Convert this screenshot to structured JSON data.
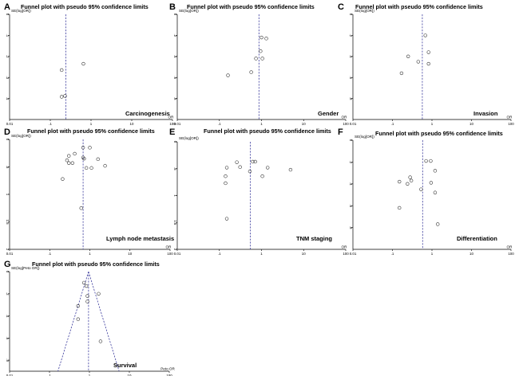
{
  "chart_data": [
    {
      "type": "scatter",
      "panel_letter": "A",
      "title": "Funnel plot with pseudo 95% confidence limits",
      "ylabel": "SE(log[OR])",
      "xlabel": "OR",
      "subtitle": "Carcinogenesis",
      "x_ticks": [
        "0.01",
        ".1",
        "1",
        "10",
        "100"
      ],
      "y_ticks": [
        "0",
        ".1",
        ".2",
        ".3",
        ".4"
      ],
      "x_log_range": [
        -2,
        2
      ],
      "ylim": [
        0,
        0.5
      ],
      "pooled": 0.24,
      "points": [
        {
          "x": 0.19,
          "y": 0.265
        },
        {
          "x": 0.19,
          "y": 0.392
        },
        {
          "x": 0.23,
          "y": 0.388
        },
        {
          "x": 0.65,
          "y": 0.235
        }
      ]
    },
    {
      "type": "scatter",
      "panel_letter": "B",
      "title": "Funnel plot with pseudo 95% confidence limits",
      "ylabel": "SE(log[OR])",
      "xlabel": "OR",
      "subtitle": "Gender",
      "x_ticks": [
        "0.01",
        ".1",
        "1",
        "10",
        "100"
      ],
      "y_ticks": [
        "0",
        ".2",
        ".4",
        ".6",
        ".8"
      ],
      "x_log_range": [
        -2,
        2
      ],
      "ylim": [
        0,
        1
      ],
      "pooled": 0.87,
      "points": [
        {
          "x": 0.16,
          "y": 0.58
        },
        {
          "x": 0.57,
          "y": 0.55
        },
        {
          "x": 0.74,
          "y": 0.42
        },
        {
          "x": 0.95,
          "y": 0.35
        },
        {
          "x": 1.0,
          "y": 0.22
        },
        {
          "x": 1.05,
          "y": 0.42
        },
        {
          "x": 1.3,
          "y": 0.23
        }
      ]
    },
    {
      "type": "scatter",
      "panel_letter": "C",
      "title": "Funnel plot with pseudo 95% confidence limits",
      "ylabel": "SE(log[OR])",
      "xlabel": "OR",
      "subtitle": "Invasion",
      "x_ticks": [
        "0.01",
        ".1",
        "1",
        "10",
        "100"
      ],
      "y_ticks": [
        "0",
        ".2",
        ".4",
        ".6",
        ".8"
      ],
      "x_log_range": [
        -2,
        2
      ],
      "ylim": [
        0,
        1
      ],
      "pooled": 0.57,
      "points": [
        {
          "x": 0.17,
          "y": 0.56
        },
        {
          "x": 0.25,
          "y": 0.4
        },
        {
          "x": 0.45,
          "y": 0.45
        },
        {
          "x": 0.68,
          "y": 0.2
        },
        {
          "x": 0.82,
          "y": 0.36
        },
        {
          "x": 0.82,
          "y": 0.47
        }
      ]
    },
    {
      "type": "scatter",
      "panel_letter": "D",
      "title": "Funnel plot with pseudo 95% confidence limits",
      "ylabel": "SE(log[OR])",
      "xlabel": "OR",
      "subtitle": "Lymph node metastasis",
      "x_ticks": [
        "0.01",
        ".1",
        "1",
        "10",
        "100"
      ],
      "y_ticks": [
        "0",
        ".5",
        "1",
        "1.5",
        "2"
      ],
      "x_log_range": [
        -2,
        2
      ],
      "ylim": [
        0,
        2
      ],
      "pooled": 0.68,
      "points": [
        {
          "x": 0.21,
          "y": 0.72
        },
        {
          "x": 0.27,
          "y": 0.38
        },
        {
          "x": 0.3,
          "y": 0.3
        },
        {
          "x": 0.3,
          "y": 0.43
        },
        {
          "x": 0.37,
          "y": 0.43
        },
        {
          "x": 0.42,
          "y": 0.26
        },
        {
          "x": 0.61,
          "y": 1.25
        },
        {
          "x": 0.68,
          "y": 0.15
        },
        {
          "x": 0.68,
          "y": 0.33
        },
        {
          "x": 0.72,
          "y": 0.35
        },
        {
          "x": 0.82,
          "y": 0.52
        },
        {
          "x": 1.0,
          "y": 0.15
        },
        {
          "x": 1.1,
          "y": 0.52
        },
        {
          "x": 1.6,
          "y": 0.36
        },
        {
          "x": 2.4,
          "y": 0.48
        }
      ]
    },
    {
      "type": "scatter",
      "panel_letter": "E",
      "title": "Funnel plot with pseudo 95% confidence limits",
      "ylabel": "SE(log[OR])",
      "xlabel": "OR",
      "subtitle": "TNM staging",
      "x_ticks": [
        "0.01",
        ".1",
        "1",
        "10",
        "100"
      ],
      "y_ticks": [
        "0",
        ".5",
        "1",
        "1.5",
        "2"
      ],
      "x_log_range": [
        -2,
        2
      ],
      "ylim": [
        0,
        2
      ],
      "pooled": 0.54,
      "points": [
        {
          "x": 0.14,
          "y": 0.64
        },
        {
          "x": 0.14,
          "y": 0.77
        },
        {
          "x": 0.15,
          "y": 0.48
        },
        {
          "x": 0.15,
          "y": 1.43
        },
        {
          "x": 0.26,
          "y": 0.38
        },
        {
          "x": 0.31,
          "y": 0.47
        },
        {
          "x": 0.53,
          "y": 0.55
        },
        {
          "x": 0.62,
          "y": 0.37
        },
        {
          "x": 0.71,
          "y": 0.37
        },
        {
          "x": 1.05,
          "y": 0.64
        },
        {
          "x": 1.4,
          "y": 0.48
        },
        {
          "x": 4.9,
          "y": 0.52
        }
      ]
    },
    {
      "type": "scatter",
      "panel_letter": "F",
      "title": "Funnel plot with pseudo 95% confidence limits",
      "ylabel": "SE(log[OR])",
      "xlabel": "OR",
      "subtitle": "Differentiation",
      "x_ticks": [
        "0.01",
        ".1",
        "1",
        "10",
        "100"
      ],
      "y_ticks": [
        "0",
        ".2",
        ".4",
        ".6",
        ".8"
      ],
      "x_log_range": [
        -2,
        2
      ],
      "ylim": [
        0,
        1
      ],
      "pooled": 0.58,
      "points": [
        {
          "x": 0.15,
          "y": 0.38
        },
        {
          "x": 0.15,
          "y": 0.62
        },
        {
          "x": 0.24,
          "y": 0.4
        },
        {
          "x": 0.28,
          "y": 0.34
        },
        {
          "x": 0.3,
          "y": 0.37
        },
        {
          "x": 0.53,
          "y": 0.45
        },
        {
          "x": 0.71,
          "y": 0.19
        },
        {
          "x": 0.93,
          "y": 0.19
        },
        {
          "x": 0.95,
          "y": 0.39
        },
        {
          "x": 1.2,
          "y": 0.28
        },
        {
          "x": 1.2,
          "y": 0.48
        },
        {
          "x": 1.4,
          "y": 0.77
        }
      ]
    },
    {
      "type": "scatter",
      "panel_letter": "G",
      "title": "Funnel plot with pseudo 95% confidence limits",
      "ylabel": "SE(log[Peto OR])",
      "xlabel": "Peto OR",
      "subtitle": "Survival",
      "x_ticks": [
        "0.01",
        ".1",
        "1",
        "10",
        "100"
      ],
      "y_ticks": [
        "0",
        ".2",
        ".4",
        ".6",
        ".8"
      ],
      "x_log_range": [
        -2,
        2
      ],
      "ylim": [
        0,
        0.9
      ],
      "pooled": 0.95,
      "funnel": true,
      "points": [
        {
          "x": 0.52,
          "y": 0.31
        },
        {
          "x": 0.52,
          "y": 0.43
        },
        {
          "x": 0.73,
          "y": 0.1
        },
        {
          "x": 0.84,
          "y": 0.13
        },
        {
          "x": 0.89,
          "y": 0.22
        },
        {
          "x": 0.89,
          "y": 0.27
        },
        {
          "x": 1.7,
          "y": 0.2
        },
        {
          "x": 1.9,
          "y": 0.63
        }
      ]
    }
  ]
}
